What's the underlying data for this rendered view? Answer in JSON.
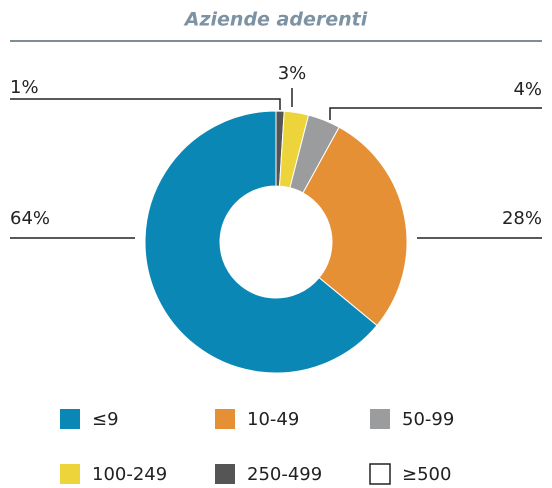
{
  "chart_data": {
    "type": "donut",
    "title": "Aziende aderenti",
    "categories": [
      "≤9",
      "10-49",
      "50-99",
      "100-249",
      "250-499",
      "≥500"
    ],
    "values": [
      64,
      28,
      4,
      3,
      1,
      0
    ],
    "value_labels": [
      "64%",
      "28%",
      "4%",
      "3%",
      "1%",
      null
    ],
    "colors": [
      "#0a87b5",
      "#e59035",
      "#9b9c9e",
      "#ecd43a",
      "#555555",
      "#ffffff"
    ]
  }
}
